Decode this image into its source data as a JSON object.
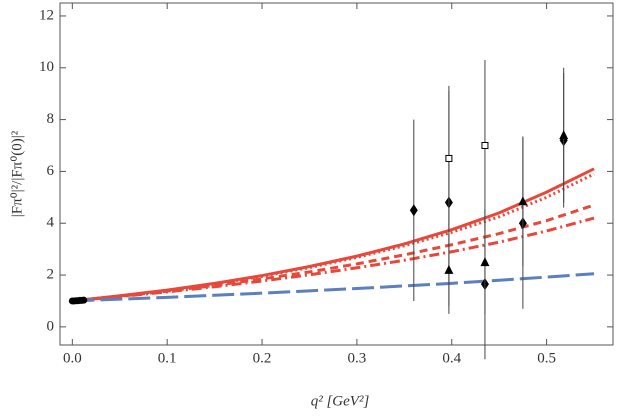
{
  "chart_data": {
    "type": "line",
    "x_label": "q² [GeV²]",
    "y_label": "|Fπ⁰|²/|Fπ⁰(0)|²",
    "xlim": [
      -0.013,
      0.57
    ],
    "ylim": [
      -0.7,
      12.5
    ],
    "xticks": [
      {
        "value": 0,
        "label": "0.0"
      },
      0.1,
      0.2,
      0.3,
      0.4,
      0.5
    ],
    "yticks": [
      0,
      2,
      4,
      6,
      8,
      10,
      12
    ],
    "x": [
      0,
      0.05,
      0.1,
      0.15,
      0.2,
      0.25,
      0.3,
      0.35,
      0.4,
      0.45,
      0.5,
      0.55
    ],
    "series": [
      {
        "color": "#e8483a",
        "dash": "solid",
        "values": [
          1,
          1.2,
          1.42,
          1.68,
          1.98,
          2.33,
          2.73,
          3.2,
          3.75,
          4.4,
          5.2,
          6.1
        ]
      },
      {
        "color": "#e8483a",
        "dash": "dotted",
        "values": [
          1,
          1.19,
          1.41,
          1.66,
          1.95,
          2.29,
          2.68,
          3.13,
          3.65,
          4.25,
          5.0,
          5.9
        ]
      },
      {
        "color": "#e8483a",
        "dash": "dashed",
        "values": [
          1,
          1.18,
          1.38,
          1.6,
          1.85,
          2.12,
          2.43,
          2.78,
          3.17,
          3.6,
          4.1,
          4.7
        ]
      },
      {
        "color": "#e8483a",
        "dash": "dashdot",
        "values": [
          1,
          1.17,
          1.35,
          1.55,
          1.77,
          2.01,
          2.28,
          2.57,
          2.9,
          3.27,
          3.7,
          4.2
        ]
      },
      {
        "color": "#5b7fbf",
        "dash": "longdash",
        "values": [
          1,
          1.07,
          1.14,
          1.22,
          1.3,
          1.39,
          1.48,
          1.58,
          1.68,
          1.8,
          1.92,
          2.05
        ]
      }
    ],
    "points": [
      {
        "marker": "diamond",
        "x": [
          0.36,
          0.397,
          0.435,
          0.475,
          0.518
        ],
        "values": [
          4.5,
          4.8,
          1.65,
          4.0,
          7.2
        ],
        "errors": [
          3.5,
          4.3,
          2.9,
          3.3,
          2.6
        ]
      },
      {
        "marker": "triangle",
        "x": [
          0.397,
          0.435,
          0.475,
          0.518
        ],
        "values": [
          2.2,
          2.5,
          4.85,
          7.4
        ],
        "errors": [
          1.4,
          2.0,
          2.5,
          2.6
        ]
      },
      {
        "marker": "square",
        "x": [
          0.397,
          0.435
        ],
        "values": [
          6.5,
          7.0
        ],
        "errors": [
          2.8,
          3.3
        ]
      },
      {
        "marker": "dot",
        "x": [
          0,
          0.002,
          0.004,
          0.006,
          0.008,
          0.01,
          0.012
        ],
        "values": [
          1.0,
          1.0,
          1.01,
          1.01,
          1.02,
          1.02,
          1.03
        ],
        "errors": [
          0,
          0,
          0,
          0,
          0,
          0,
          0
        ]
      }
    ]
  }
}
